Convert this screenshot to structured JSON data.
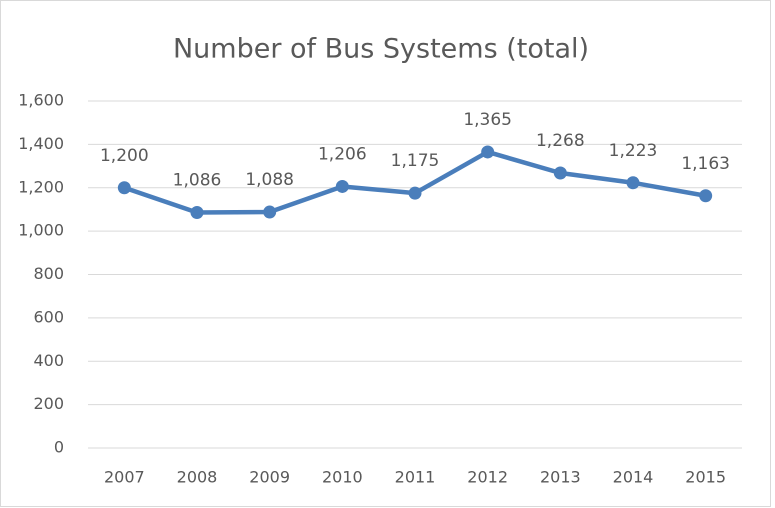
{
  "chart_data": {
    "type": "line",
    "title": "Number of Bus Systems (total)",
    "categories": [
      "2007",
      "2008",
      "2009",
      "2010",
      "2011",
      "2012",
      "2013",
      "2014",
      "2015"
    ],
    "series": [
      {
        "name": "Number of Bus Systems",
        "color": "#4a7ebb",
        "values": [
          1200,
          1086,
          1088,
          1206,
          1175,
          1365,
          1268,
          1223,
          1163
        ],
        "value_labels": [
          "1,200",
          "1,086",
          "1,088",
          "1,206",
          "1,175",
          "1,365",
          "1,268",
          "1,223",
          "1,163"
        ]
      }
    ],
    "ylim": [
      0,
      1600
    ],
    "yticks": [
      0,
      200,
      400,
      600,
      800,
      {
        "value": 1000,
        "label": "1,000"
      },
      {
        "value": 1200,
        "label": "1,200"
      },
      {
        "value": 1400,
        "label": "1,400"
      },
      {
        "value": 1600,
        "label": "1,600"
      }
    ],
    "grid": true
  }
}
